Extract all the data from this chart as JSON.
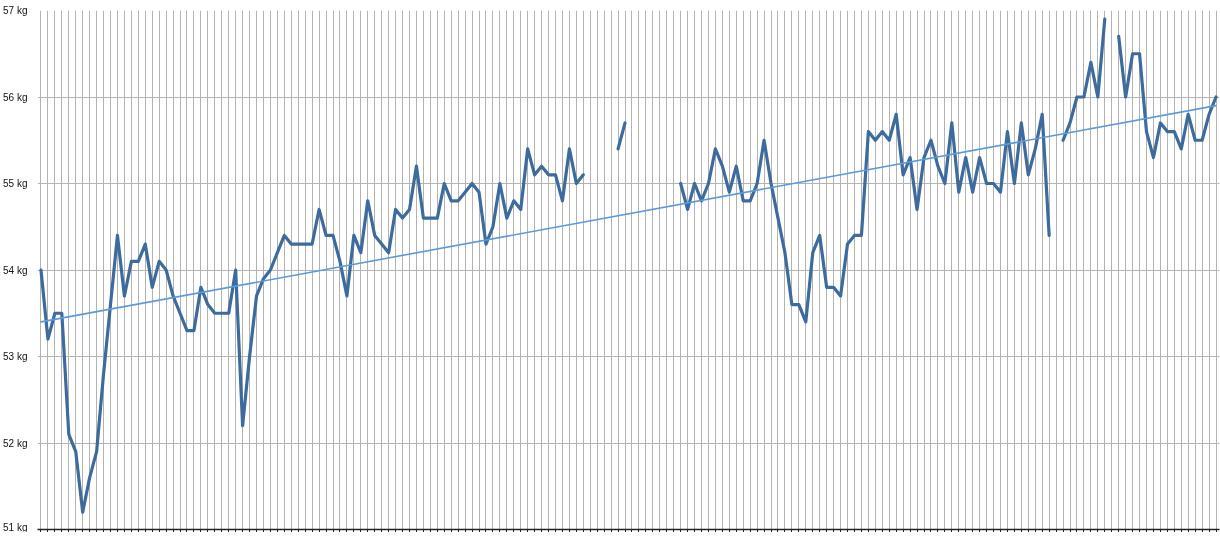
{
  "chart_data": {
    "type": "line",
    "categories": [
      null,
      null,
      null,
      null,
      null,
      null,
      null,
      null,
      null,
      null,
      null,
      null,
      null,
      null,
      null,
      null,
      null,
      null,
      null,
      null,
      null,
      null,
      null,
      null,
      null,
      null,
      null,
      null,
      null,
      null,
      null,
      null,
      null,
      null,
      null,
      null,
      null,
      null,
      null,
      null,
      null,
      null,
      null,
      null,
      null,
      null,
      null,
      null,
      null,
      null,
      null,
      null,
      null,
      null,
      null,
      null,
      null,
      null,
      null,
      null,
      null,
      null,
      null,
      null,
      null,
      null,
      null,
      null,
      null,
      null,
      null,
      null,
      null,
      null,
      null,
      null,
      null,
      null,
      null,
      null,
      null,
      null,
      null,
      null,
      null,
      null,
      null,
      null,
      null,
      null,
      null,
      null,
      null,
      null,
      null,
      null,
      null,
      null,
      null,
      null,
      null,
      null,
      null,
      null,
      null,
      null,
      null,
      null,
      null,
      null,
      null,
      null,
      null,
      null,
      null,
      null,
      null,
      null,
      null,
      null,
      null,
      null,
      null,
      null,
      null,
      null,
      null,
      null,
      null,
      null,
      null,
      null,
      null,
      null,
      null,
      null,
      null,
      null,
      null,
      null,
      null,
      null,
      null,
      null,
      null,
      null,
      null,
      null,
      null,
      null,
      null,
      null,
      null,
      null,
      null,
      null,
      null,
      null,
      null,
      null,
      null,
      null,
      null,
      null,
      null,
      null,
      null,
      null,
      null,
      null
    ],
    "series": [
      {
        "color": "#3d6b9e",
        "values": [
          54.0,
          53.2,
          53.5,
          53.5,
          52.1,
          51.9,
          51.2,
          51.6,
          51.9,
          52.8,
          53.6,
          54.4,
          53.7,
          54.1,
          54.1,
          54.3,
          53.8,
          54.1,
          54.0,
          53.7,
          53.5,
          53.3,
          53.3,
          53.8,
          53.6,
          53.5,
          53.5,
          53.5,
          54.0,
          52.2,
          53.0,
          53.7,
          53.9,
          54.0,
          54.2,
          54.4,
          54.3,
          54.3,
          54.3,
          54.3,
          54.7,
          54.4,
          54.4,
          54.1,
          53.7,
          54.4,
          54.2,
          54.8,
          54.4,
          54.3,
          54.2,
          54.7,
          54.6,
          54.7,
          55.2,
          54.6,
          54.6,
          54.6,
          55.0,
          54.8,
          54.8,
          54.9,
          55.0,
          54.9,
          54.3,
          54.5,
          55.0,
          54.6,
          54.8,
          54.7,
          55.4,
          55.1,
          55.2,
          55.1,
          55.1,
          54.8,
          55.4,
          55.0,
          55.1,
          null,
          null,
          null,
          null,
          55.4,
          55.7,
          null,
          null,
          null,
          null,
          null,
          null,
          null,
          55.0,
          54.7,
          55.0,
          54.8,
          55.0,
          55.4,
          55.2,
          54.9,
          55.2,
          54.8,
          54.8,
          55.0,
          55.5,
          55.0,
          54.6,
          54.2,
          53.6,
          53.6,
          53.4,
          54.2,
          54.4,
          53.8,
          53.8,
          53.7,
          54.3,
          54.4,
          54.4,
          55.6,
          55.5,
          55.6,
          55.5,
          55.8,
          55.1,
          55.3,
          54.7,
          55.3,
          55.5,
          55.2,
          55.0,
          55.7,
          54.9,
          55.3,
          54.9,
          55.3,
          55.0,
          55.0,
          54.9,
          55.6,
          55.0,
          55.7,
          55.1,
          55.4,
          55.8,
          54.4,
          null,
          55.5,
          55.7,
          56.0,
          56.0,
          56.4,
          56.0,
          56.9,
          null,
          56.7,
          56.0,
          56.5,
          56.5,
          55.6,
          55.3,
          55.7,
          55.6,
          55.6,
          55.4,
          55.8,
          55.5,
          55.5,
          55.8,
          56.0
        ]
      },
      {
        "type": "line",
        "color": "#5b9bd8",
        "values": [
          53.4,
          null,
          null,
          null,
          null,
          null,
          null,
          null,
          null,
          null,
          null,
          null,
          null,
          null,
          null,
          null,
          null,
          null,
          null,
          null,
          null,
          null,
          null,
          null,
          null,
          null,
          null,
          null,
          null,
          null,
          null,
          null,
          null,
          null,
          null,
          null,
          null,
          null,
          null,
          null,
          null,
          null,
          null,
          null,
          null,
          null,
          null,
          null,
          null,
          null,
          null,
          null,
          null,
          null,
          null,
          null,
          null,
          null,
          null,
          null,
          null,
          null,
          null,
          null,
          null,
          null,
          null,
          null,
          null,
          null,
          null,
          null,
          null,
          null,
          null,
          null,
          null,
          null,
          null,
          null,
          null,
          null,
          null,
          null,
          null,
          null,
          null,
          null,
          null,
          null,
          null,
          null,
          null,
          null,
          null,
          null,
          null,
          null,
          null,
          null,
          null,
          null,
          null,
          null,
          null,
          null,
          null,
          null,
          null,
          null,
          null,
          null,
          null,
          null,
          null,
          null,
          null,
          null,
          null,
          null,
          null,
          null,
          null,
          null,
          null,
          null,
          null,
          null,
          null,
          null,
          null,
          null,
          null,
          null,
          null,
          null,
          null,
          null,
          null,
          null,
          null,
          null,
          null,
          null,
          null,
          null,
          null,
          null,
          null,
          null,
          null,
          null,
          null,
          null,
          null,
          null,
          null,
          null,
          null,
          null,
          null,
          null,
          null,
          null,
          null,
          null,
          null,
          null,
          null,
          55.9
        ]
      }
    ],
    "ylim": [
      51,
      57
    ],
    "yticks": [
      {
        "value": 51,
        "label": "51 kg"
      },
      {
        "value": 52,
        "label": "52 kg"
      },
      {
        "value": 53,
        "label": "53 kg"
      },
      {
        "value": 54,
        "label": "54 kg"
      },
      {
        "value": 55,
        "label": "55 kg"
      },
      {
        "value": 56,
        "label": "56 kg"
      },
      {
        "value": 57,
        "label": "57 kg"
      }
    ],
    "grid": true,
    "tick_labels": "y"
  }
}
